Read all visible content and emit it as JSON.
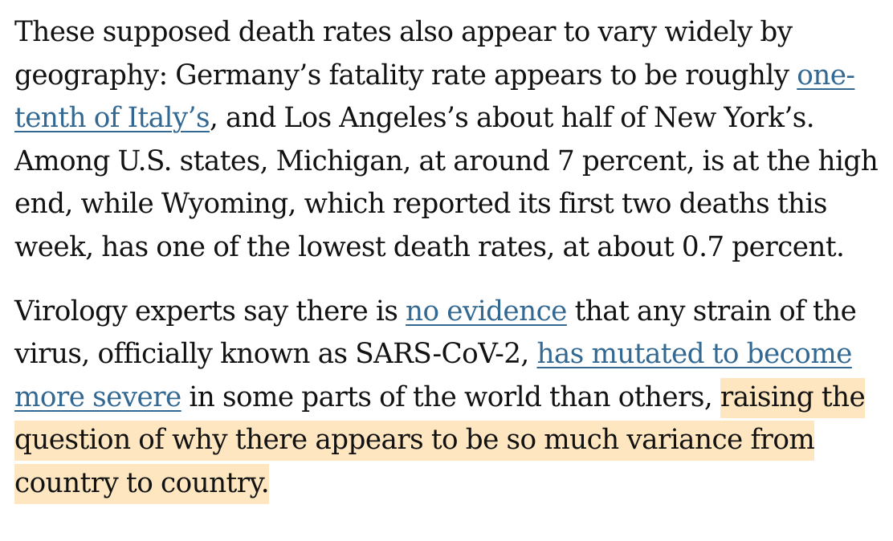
{
  "paragraphs": [
    {
      "p1_text_a": "These supposed death rates also appear to vary widely by geography: Germany’s fatality rate appears to be roughly ",
      "p1_link_a": "one-tenth of Italy’s",
      "p1_text_b": ", and Los Angeles’s about half of New York’s. Among U.S. states, Michigan, at around 7 percent, is at the high end, while Wyoming, which reported its first two deaths this week, has one of the lowest death rates, at about 0.7 percent."
    },
    {
      "p2_text_a": "Virology experts say there is ",
      "p2_link_a": "no evidence",
      "p2_text_b": " that any strain of the virus, officially known as SARS-CoV-2, ",
      "p2_link_b": "has mutated to become more severe",
      "p2_text_c": " in some parts of the world than others, ",
      "p2_highlight": "raising the question of why there appears to be so much variance from country to country."
    }
  ],
  "colors": {
    "body_text": "#121212",
    "link": "#326891",
    "highlight": "#fde6c0",
    "background": "#ffffff"
  }
}
